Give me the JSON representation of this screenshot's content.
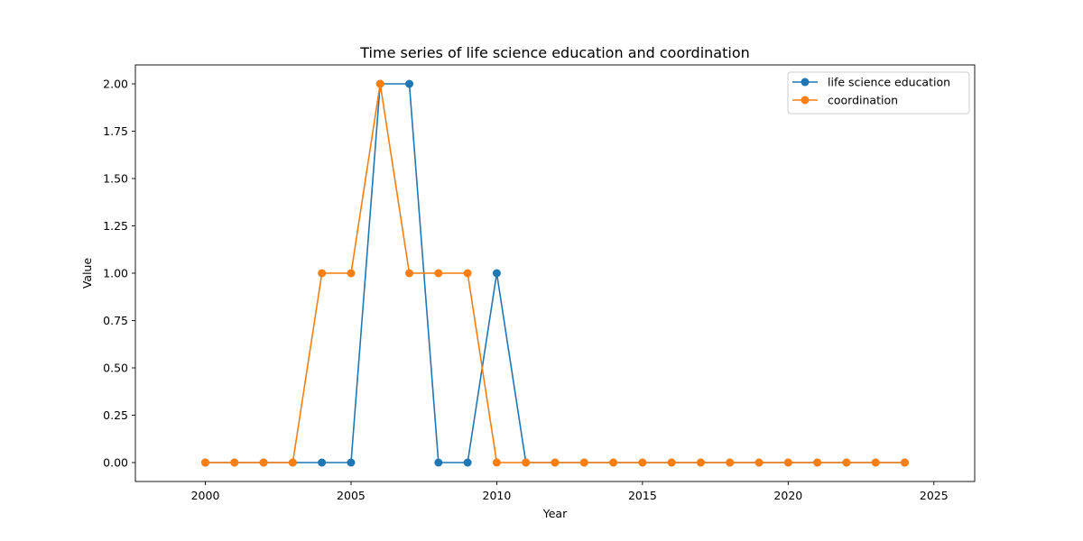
{
  "chart_data": {
    "type": "line",
    "title": "Time series of life science education and coordination",
    "xlabel": "Year",
    "ylabel": "Value",
    "x": [
      2000,
      2001,
      2002,
      2003,
      2004,
      2005,
      2006,
      2007,
      2008,
      2009,
      2010,
      2011,
      2012,
      2013,
      2014,
      2015,
      2016,
      2017,
      2018,
      2019,
      2020,
      2021,
      2022,
      2023,
      2024
    ],
    "series": [
      {
        "name": "life science education",
        "color": "#1f77b4",
        "values": [
          0,
          0,
          0,
          0,
          0,
          0,
          2,
          2,
          0,
          0,
          1,
          0,
          0,
          0,
          0,
          0,
          0,
          0,
          0,
          0,
          0,
          0,
          0,
          0,
          0
        ]
      },
      {
        "name": "coordination",
        "color": "#ff7f0e",
        "values": [
          0,
          0,
          0,
          0,
          1,
          1,
          2,
          1,
          1,
          1,
          0,
          0,
          0,
          0,
          0,
          0,
          0,
          0,
          0,
          0,
          0,
          0,
          0,
          0,
          0
        ]
      }
    ],
    "xlim": [
      1997.6,
      2026.4
    ],
    "ylim": [
      -0.1,
      2.1
    ],
    "xticks": [
      2000,
      2005,
      2010,
      2015,
      2020,
      2025
    ],
    "yticks": [
      "0.00",
      "0.25",
      "0.50",
      "0.75",
      "1.00",
      "1.25",
      "1.50",
      "1.75",
      "2.00"
    ],
    "grid": false,
    "legend_position": "upper right",
    "marker": "circle"
  }
}
